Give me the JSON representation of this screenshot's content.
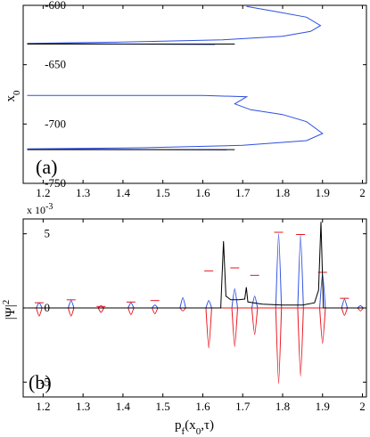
{
  "chart_data": [
    {
      "type": "line",
      "panel_label": "(a)",
      "ylabel": "x",
      "ylabel_sub": "0",
      "xlim": [
        1.15,
        2.01
      ],
      "ylim": [
        -750,
        -600
      ],
      "xticks": [
        "1.2",
        "1.3",
        "1.4",
        "1.5",
        "1.6",
        "1.7",
        "1.8",
        "1.9",
        "2"
      ],
      "yticks": [
        "-600",
        "-650",
        "-700",
        "-750"
      ],
      "colors": {
        "blue": "#2e4fe0",
        "black": "#000000"
      },
      "series": [
        {
          "color": "blue",
          "points": [
            [
              1.71,
              -601
            ],
            [
              1.78,
              -605
            ],
            [
              1.86,
              -610
            ],
            [
              1.895,
              -617
            ],
            [
              1.87,
              -622
            ],
            [
              1.8,
              -626
            ],
            [
              1.65,
              -629
            ],
            [
              1.4,
              -631
            ],
            [
              1.16,
              -632
            ],
            [
              1.4,
              -632.6
            ],
            [
              1.63,
              -633
            ]
          ]
        },
        {
          "color": "blue",
          "points": [
            [
              1.16,
              -676
            ],
            [
              1.4,
              -676
            ],
            [
              1.6,
              -676
            ],
            [
              1.71,
              -677
            ],
            [
              1.68,
              -683
            ],
            [
              1.72,
              -688
            ],
            [
              1.8,
              -692
            ],
            [
              1.86,
              -698
            ],
            [
              1.9,
              -708
            ],
            [
              1.86,
              -714
            ],
            [
              1.7,
              -718
            ],
            [
              1.45,
              -720
            ],
            [
              1.16,
              -721
            ],
            [
              1.4,
              -721.4
            ],
            [
              1.66,
              -721.8
            ]
          ]
        },
        {
          "color": "black",
          "points": [
            [
              1.16,
              -632.6
            ],
            [
              1.68,
              -632.6
            ]
          ]
        },
        {
          "color": "black",
          "points": [
            [
              1.16,
              -721.6
            ],
            [
              1.68,
              -721.6
            ]
          ]
        }
      ]
    },
    {
      "type": "line",
      "panel_label": "(b)",
      "ylabel": "|Ψ|",
      "ylabel_sup": "2",
      "xlabel": "p",
      "xlabel_sub": "f",
      "xlabel_rest": "(x",
      "xlabel_sub2": "0",
      "xlabel_end": ",τ)",
      "scale_label": "x 10",
      "scale_exp": "-3",
      "xlim": [
        1.15,
        2.01
      ],
      "ylim": [
        -6,
        6
      ],
      "xticks": [
        "1.2",
        "1.3",
        "1.4",
        "1.5",
        "1.6",
        "1.7",
        "1.8",
        "1.9",
        "2"
      ],
      "yticks": [
        "5",
        "0",
        "-5"
      ],
      "colors": {
        "blue": "#2e4fe0",
        "red": "#e8141e",
        "black": "#000000"
      },
      "peaks": [
        {
          "x": 1.19,
          "pos": 0.35,
          "neg": -0.55,
          "mark": 0.35
        },
        {
          "x": 1.27,
          "pos": 0.5,
          "neg": -0.55,
          "mark": 0.55
        },
        {
          "x": 1.345,
          "pos": 0.15,
          "neg": -0.3,
          "mark": 0.1
        },
        {
          "x": 1.42,
          "pos": 0.35,
          "neg": -0.45,
          "mark": 0.4
        },
        {
          "x": 1.48,
          "pos": 0.2,
          "neg": -0.4,
          "mark": 0.5
        },
        {
          "x": 1.55,
          "pos": 0.7,
          "neg": -0.2,
          "mark": 0.0
        },
        {
          "x": 1.615,
          "pos": 0.5,
          "neg": -2.7,
          "mark": 2.5
        },
        {
          "x": 1.68,
          "pos": 1.3,
          "neg": -2.6,
          "mark": 2.7
        },
        {
          "x": 1.73,
          "pos": 0.8,
          "neg": -1.8,
          "mark": 2.2
        },
        {
          "x": 1.79,
          "pos": 5.0,
          "neg": -5.1,
          "mark": 5.1
        },
        {
          "x": 1.845,
          "pos": 4.9,
          "neg": -4.6,
          "mark": 4.95
        },
        {
          "x": 1.9,
          "pos": 2.3,
          "neg": -2.4,
          "mark": 2.4
        },
        {
          "x": 1.955,
          "pos": 0.6,
          "neg": -0.5,
          "mark": 0.65
        },
        {
          "x": 1.995,
          "pos": 0.15,
          "neg": -0.2,
          "mark": 0.0
        }
      ],
      "black_curve": [
        [
          1.16,
          0
        ],
        [
          1.645,
          0
        ],
        [
          1.652,
          4.5
        ],
        [
          1.658,
          0.8
        ],
        [
          1.67,
          0.55
        ],
        [
          1.69,
          0.55
        ],
        [
          1.705,
          0.6
        ],
        [
          1.709,
          1.4
        ],
        [
          1.713,
          0.4
        ],
        [
          1.75,
          0.25
        ],
        [
          1.8,
          0.2
        ],
        [
          1.85,
          0.2
        ],
        [
          1.88,
          0.35
        ],
        [
          1.89,
          1.2
        ],
        [
          1.896,
          5.8
        ],
        [
          1.902,
          0
        ],
        [
          2.01,
          0
        ]
      ]
    }
  ]
}
